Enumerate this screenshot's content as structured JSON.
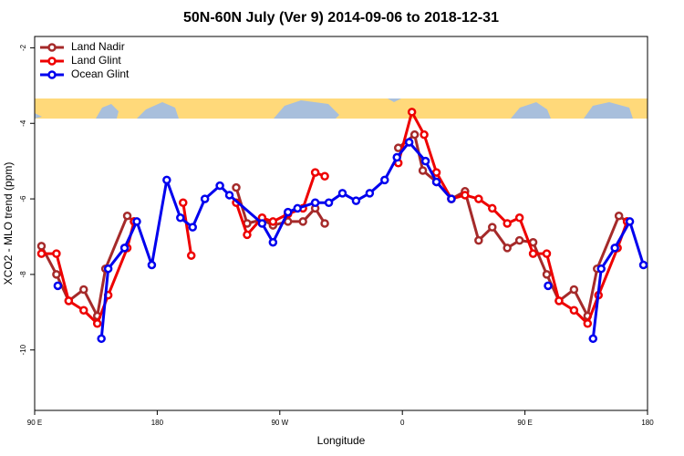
{
  "chart_data": {
    "type": "line",
    "title": "50N-60N July (Ver 9)   2014-09-06 to 2018-12-31",
    "x_label": "Longitude",
    "y_label": "XCO2 - MLO trend (ppm)",
    "xlim": [
      90,
      540
    ],
    "xticks": [
      {
        "value": 90,
        "label": "90 E"
      },
      {
        "value": 180,
        "label": "180"
      },
      {
        "value": 270,
        "label": "90 W"
      },
      {
        "value": 360,
        "label": "0"
      },
      {
        "value": 450,
        "label": "90 E"
      },
      {
        "value": 540,
        "label": "180"
      }
    ],
    "ylim": [
      -11.6,
      -1.7
    ],
    "yticks": [
      -2,
      -4,
      -6,
      -8,
      -10
    ],
    "legend": "top-left",
    "series": [
      {
        "name": "Land Nadir",
        "color": "#a52a2a",
        "x": [
          95,
          106,
          115,
          126,
          136,
          142,
          158,
          163,
          null,
          238,
          246,
          257,
          265,
          276,
          287,
          296,
          303,
          null,
          357,
          369,
          375,
          385,
          396,
          406,
          416,
          426,
          437,
          446,
          456,
          466,
          475,
          486,
          496,
          503,
          519,
          525
        ],
        "values": [
          -7.25,
          -8.0,
          -8.7,
          -8.4,
          -9.1,
          -7.85,
          -6.45,
          -6.6,
          null,
          -5.7,
          -6.65,
          -6.55,
          -6.7,
          -6.6,
          -6.6,
          -6.25,
          -6.65,
          null,
          -4.65,
          -4.3,
          -5.25,
          -5.55,
          -6.0,
          -5.8,
          -7.1,
          -6.75,
          -7.3,
          -7.1,
          -7.15,
          -8.0,
          -8.7,
          -8.4,
          -9.1,
          -7.85,
          -6.45,
          -6.6
        ]
      },
      {
        "name": "Land Glint",
        "color": "#ee0000",
        "x": [
          95,
          106,
          115,
          126,
          136,
          144,
          158,
          163,
          null,
          199,
          205,
          null,
          238,
          246,
          257,
          265,
          276,
          287,
          296,
          303,
          null,
          357,
          367,
          376,
          385,
          396,
          406,
          416,
          426,
          437,
          446,
          456,
          466,
          475,
          486,
          496,
          504,
          518,
          525
        ],
        "values": [
          -7.45,
          -7.45,
          -8.7,
          -8.95,
          -9.3,
          -8.55,
          -7.3,
          -6.6,
          null,
          -6.1,
          -7.5,
          null,
          -6.1,
          -6.95,
          -6.5,
          -6.6,
          -6.4,
          -6.25,
          -5.3,
          -5.4,
          null,
          -5.05,
          -3.7,
          -4.3,
          -5.3,
          -6.0,
          -5.9,
          -6.0,
          -6.25,
          -6.65,
          -6.5,
          -7.45,
          -7.45,
          -8.7,
          -8.95,
          -9.3,
          -8.55,
          -7.3,
          -6.6
        ]
      },
      {
        "name": "Ocean Glint",
        "color": "#0000ee",
        "x": [
          107,
          null,
          139,
          144,
          156,
          165,
          176,
          187,
          197,
          206,
          215,
          226,
          233,
          257,
          265,
          276,
          283,
          296,
          306,
          316,
          326,
          336,
          347,
          356,
          365,
          377,
          385,
          396,
          null,
          467,
          null,
          500,
          506,
          516,
          527,
          537
        ],
        "values": [
          -8.3,
          null,
          -9.7,
          -7.85,
          -7.3,
          -6.6,
          -7.75,
          -5.5,
          -6.5,
          -6.75,
          -6.0,
          -5.65,
          -5.9,
          -6.65,
          -7.15,
          -6.35,
          -6.25,
          -6.1,
          -6.1,
          -5.85,
          -6.05,
          -5.85,
          -5.5,
          -4.9,
          -4.5,
          -5.0,
          -5.55,
          -6.0,
          null,
          -8.3,
          null,
          -9.7,
          -7.85,
          -7.3,
          -6.6,
          -7.75
        ]
      }
    ]
  }
}
